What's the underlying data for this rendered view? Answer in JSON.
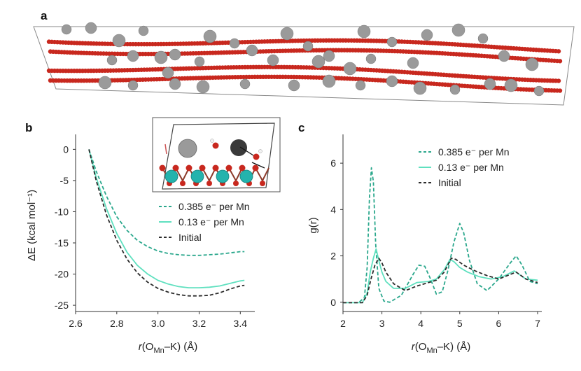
{
  "panels": {
    "a": {
      "label": "a"
    },
    "b": {
      "label": "b"
    },
    "c": {
      "label": "c"
    }
  },
  "colors": {
    "series_0385": "#2aa78c",
    "series_013": "#5fe0bf",
    "series_initial": "#2b2b2b",
    "atom_o": "#c8281e",
    "atom_mn": "#24b3ad",
    "atom_k": "#9a9a9a",
    "atom_h": "#f2f2f2"
  },
  "chart_data": [
    {
      "panel": "b",
      "type": "line",
      "xlabel": "r(O_Mn–K) (Å)",
      "ylabel": "ΔE (kcal mol⁻¹)",
      "xlim": [
        2.6,
        3.45
      ],
      "ylim": [
        -26,
        1.5
      ],
      "xticks": [
        "2.6",
        "2.8",
        "3.0",
        "3.2",
        "3.4"
      ],
      "yticks": [
        "0",
        "-5",
        "-10",
        "-15",
        "-20",
        "-25"
      ],
      "legend_position": "right, below inset",
      "series": [
        {
          "name": "0.385 e⁻ per Mn",
          "style": "dashed",
          "x": [
            2.665,
            2.7,
            2.75,
            2.8,
            2.85,
            2.9,
            2.95,
            3.0,
            3.05,
            3.1,
            3.15,
            3.2,
            3.25,
            3.3,
            3.35,
            3.4,
            3.42
          ],
          "y": [
            0.0,
            -3.5,
            -7.5,
            -10.8,
            -13.0,
            -14.6,
            -15.6,
            -16.3,
            -16.7,
            -16.9,
            -17.0,
            -17.0,
            -16.9,
            -16.8,
            -16.6,
            -16.4,
            -16.4
          ]
        },
        {
          "name": "0.13 e⁻ per Mn",
          "style": "solid",
          "x": [
            2.665,
            2.7,
            2.75,
            2.8,
            2.85,
            2.9,
            2.95,
            3.0,
            3.05,
            3.1,
            3.15,
            3.2,
            3.25,
            3.3,
            3.35,
            3.4,
            3.42
          ],
          "y": [
            0.0,
            -4.5,
            -9.5,
            -13.5,
            -16.5,
            -18.6,
            -20.0,
            -21.0,
            -21.6,
            -22.0,
            -22.2,
            -22.2,
            -22.1,
            -21.9,
            -21.5,
            -21.1,
            -21.0
          ]
        },
        {
          "name": "Initial",
          "style": "dashed",
          "x": [
            2.665,
            2.7,
            2.75,
            2.8,
            2.85,
            2.9,
            2.95,
            3.0,
            3.05,
            3.1,
            3.15,
            3.2,
            3.25,
            3.3,
            3.35,
            3.4,
            3.42
          ],
          "y": [
            0.0,
            -5.0,
            -10.5,
            -14.6,
            -17.6,
            -19.8,
            -21.3,
            -22.3,
            -22.9,
            -23.3,
            -23.5,
            -23.5,
            -23.4,
            -23.0,
            -22.4,
            -21.9,
            -21.8
          ]
        }
      ]
    },
    {
      "panel": "c",
      "type": "line",
      "xlabel": "r(O_Mn–K) (Å)",
      "ylabel": "g(r)",
      "xlim": [
        2,
        7
      ],
      "ylim": [
        -0.4,
        7
      ],
      "xticks": [
        "2",
        "3",
        "4",
        "5",
        "6",
        "7"
      ],
      "yticks": [
        "0",
        "2",
        "4",
        "6"
      ],
      "legend_position": "top-right",
      "series": [
        {
          "name": "0.385 e⁻ per Mn",
          "style": "dashed",
          "x": [
            2.0,
            2.4,
            2.55,
            2.62,
            2.68,
            2.73,
            2.78,
            2.84,
            2.92,
            3.05,
            3.2,
            3.5,
            3.8,
            3.95,
            4.1,
            4.25,
            4.4,
            4.55,
            4.7,
            4.85,
            5.0,
            5.1,
            5.25,
            5.45,
            5.7,
            6.0,
            6.3,
            6.45,
            6.6,
            6.8,
            7.0
          ],
          "y": [
            -0.02,
            -0.02,
            0.2,
            1.5,
            4.5,
            5.8,
            5.2,
            2.5,
            0.6,
            0.05,
            0.0,
            0.3,
            1.2,
            1.6,
            1.55,
            1.0,
            0.35,
            0.45,
            1.4,
            2.6,
            3.4,
            3.0,
            1.8,
            0.8,
            0.5,
            1.0,
            1.7,
            2.0,
            1.6,
            0.9,
            0.8
          ]
        },
        {
          "name": "0.13 e⁻ per Mn",
          "style": "solid",
          "x": [
            2.0,
            2.5,
            2.62,
            2.7,
            2.78,
            2.85,
            2.92,
            3.0,
            3.1,
            3.3,
            3.6,
            3.9,
            4.2,
            4.4,
            4.6,
            4.75,
            4.85,
            5.0,
            5.2,
            5.5,
            5.8,
            6.1,
            6.4,
            6.7,
            7.0
          ],
          "y": [
            -0.02,
            -0.02,
            0.4,
            1.3,
            1.9,
            2.3,
            1.8,
            1.3,
            0.9,
            0.6,
            0.6,
            0.85,
            0.9,
            1.0,
            1.4,
            1.85,
            1.75,
            1.5,
            1.3,
            1.1,
            1.0,
            1.1,
            1.35,
            1.0,
            0.95
          ]
        },
        {
          "name": "Initial",
          "style": "dashed",
          "x": [
            2.0,
            2.5,
            2.62,
            2.72,
            2.82,
            2.92,
            3.0,
            3.1,
            3.3,
            3.6,
            3.9,
            4.2,
            4.4,
            4.6,
            4.78,
            4.9,
            5.1,
            5.4,
            5.7,
            6.0,
            6.3,
            6.45,
            6.7,
            7.0
          ],
          "y": [
            -0.02,
            -0.02,
            0.3,
            1.0,
            1.6,
            1.9,
            1.7,
            1.3,
            0.8,
            0.5,
            0.7,
            0.85,
            0.95,
            1.3,
            1.9,
            1.85,
            1.6,
            1.35,
            1.15,
            1.0,
            1.2,
            1.3,
            1.0,
            0.85
          ]
        }
      ]
    }
  ]
}
